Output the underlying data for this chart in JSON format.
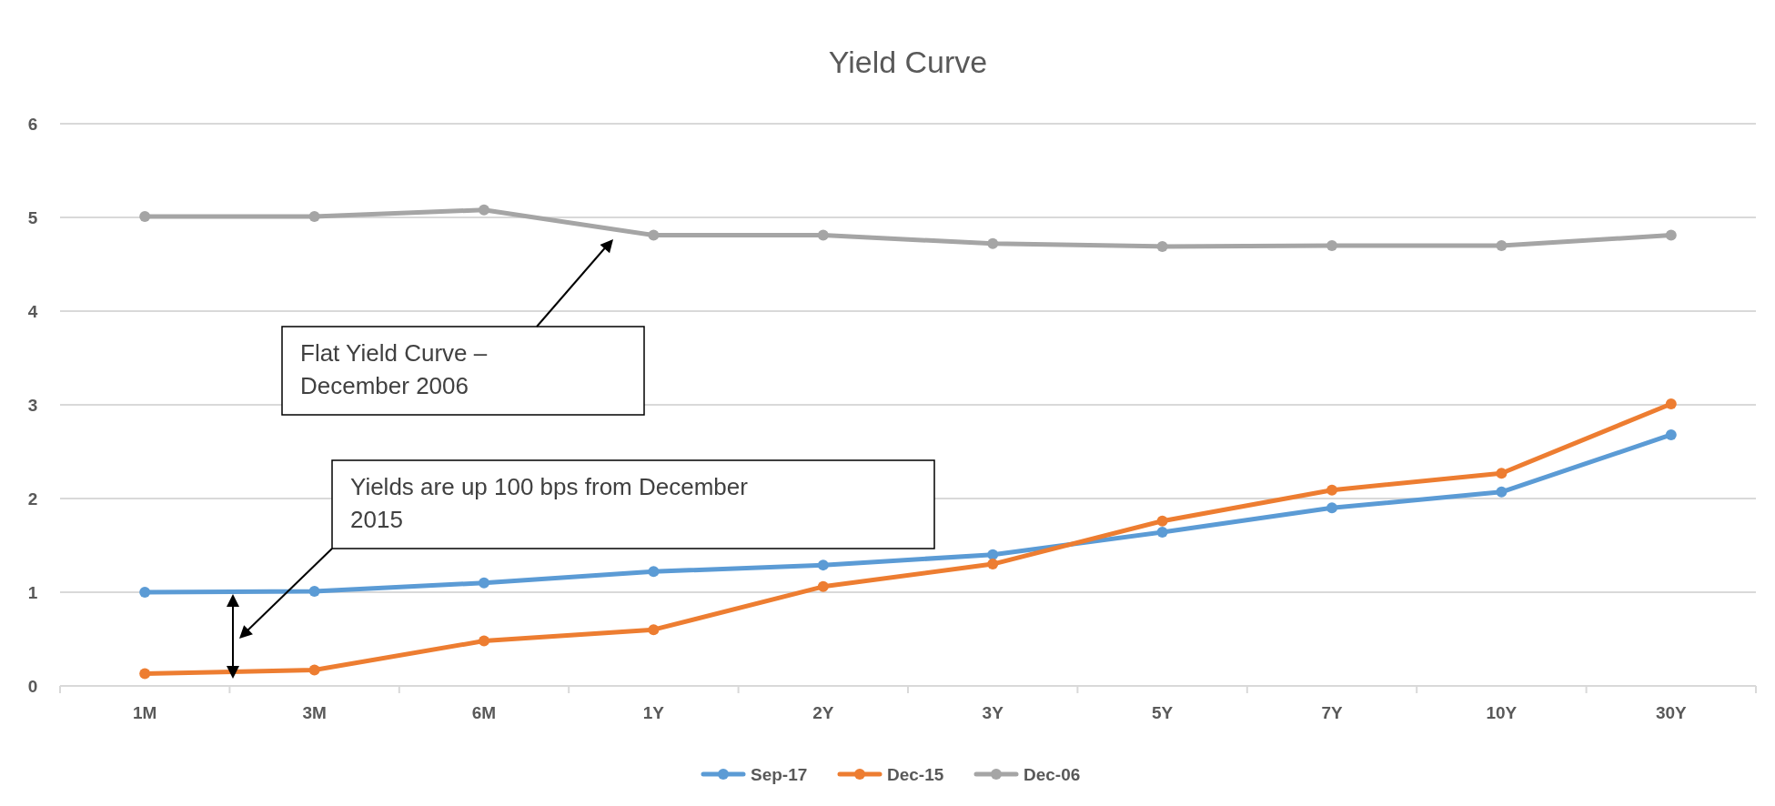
{
  "chart_data": {
    "type": "line",
    "title": "Yield Curve",
    "categories": [
      "1M",
      "3M",
      "6M",
      "1Y",
      "2Y",
      "3Y",
      "5Y",
      "7Y",
      "10Y",
      "30Y"
    ],
    "series": [
      {
        "name": "Sep-17",
        "color": "#5b9bd5",
        "values": [
          1.0,
          1.01,
          1.1,
          1.22,
          1.29,
          1.4,
          1.64,
          1.9,
          2.07,
          2.68
        ]
      },
      {
        "name": "Dec-15",
        "color": "#ed7d31",
        "values": [
          0.13,
          0.17,
          0.48,
          0.6,
          1.06,
          1.3,
          1.76,
          2.09,
          2.27,
          3.01
        ]
      },
      {
        "name": "Dec-06",
        "color": "#a5a5a5",
        "values": [
          5.01,
          5.01,
          5.08,
          4.81,
          4.81,
          4.72,
          4.69,
          4.7,
          4.7,
          4.81
        ]
      }
    ],
    "ylim": [
      0,
      6
    ],
    "yticks": [
      0,
      1,
      2,
      3,
      4,
      5,
      6
    ],
    "grid": "y",
    "legend": "bottom",
    "marker": "circle",
    "line_style": "solid",
    "annotations": [
      "Flat Yield Curve –\nDecember 2006",
      "Yields are up 100 bps from December\n2015"
    ]
  }
}
